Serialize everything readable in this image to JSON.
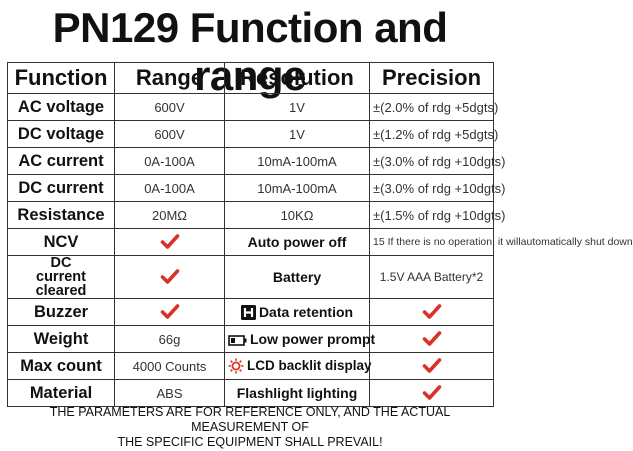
{
  "title": "PN129 Function and range",
  "headers": [
    "Function",
    "Range",
    "Resolution",
    "Precision"
  ],
  "rows": [
    {
      "function": "AC voltage",
      "range": "600V",
      "resolution": "1V",
      "precision": "±(2.0% of rdg +5dgts)"
    },
    {
      "function": "DC voltage",
      "range": "600V",
      "resolution": "1V",
      "precision": "±(1.2% of rdg +5dgts)"
    },
    {
      "function": "AC current",
      "range": "0A-100A",
      "resolution": "10mA-100mA",
      "precision": "±(3.0% of rdg +10dgts)"
    },
    {
      "function": "DC current",
      "range": "0A-100A",
      "resolution": "10mA-100mA",
      "precision": "±(3.0% of rdg +10dgts)"
    },
    {
      "function": "Resistance",
      "range": "20MΩ",
      "resolution": "10KΩ",
      "precision": "±(1.5% of rdg +10dgts)"
    },
    {
      "function": "NCV",
      "range_check": true,
      "feature": "Auto power off",
      "feature_value": "15 If there is no operation, it willautomatically shut down"
    },
    {
      "function_line1": "DC",
      "function_line2": "current cleared",
      "range_check": true,
      "feature": "Battery",
      "feature_value": "1.5V AAA Battery*2"
    },
    {
      "function": "Buzzer",
      "range_check": true,
      "feature": "Data retention",
      "feature_icon": "hold-h-icon",
      "feature_check": true
    },
    {
      "function": "Weight",
      "range": "66g",
      "feature": "Low power prompt",
      "feature_icon": "battery-icon",
      "feature_check": true
    },
    {
      "function": "Max count",
      "range": "4000 Counts",
      "feature": "LCD backlit display",
      "feature_icon": "sun-icon",
      "feature_check": true
    },
    {
      "function": "Material",
      "range": "ABS",
      "feature": "Flashlight lighting",
      "feature_check": true
    }
  ],
  "disclaimer_line1": "THE PARAMETERS ARE FOR REFERENCE ONLY, AND THE ACTUAL MEASUREMENT OF",
  "disclaimer_line2": "THE SPECIFIC EQUIPMENT SHALL PREVAIL!",
  "colors": {
    "check": "#d9312b",
    "text": "#111111",
    "border": "#333333",
    "icon_red": "#e0301e"
  }
}
